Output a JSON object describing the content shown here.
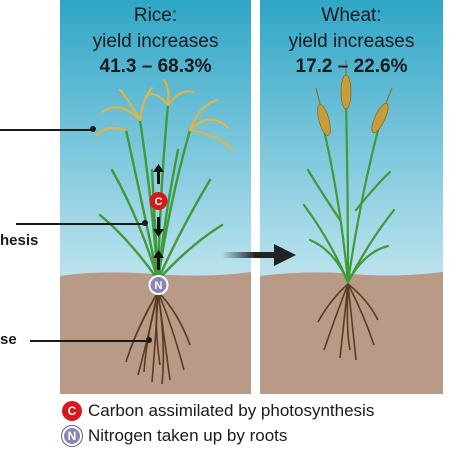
{
  "rice": {
    "title": "Rice:",
    "subtitle": "yield increases",
    "value": "41.3 – 68.3%"
  },
  "wheat": {
    "title": "Wheat:",
    "subtitle": "yield increases",
    "value": "17.2 – 22.6%"
  },
  "callouts": {
    "middle": "hesis",
    "bottom": "se"
  },
  "legend": [
    {
      "symbol": "C",
      "label": "Carbon assimilated by photosynthesis"
    },
    {
      "symbol": "N",
      "label": "Nitrogen taken up by roots"
    }
  ],
  "colors": {
    "sky_top": "#2fa6c6",
    "sky_bottom": "#eaf6fa",
    "soil": "#b89a87",
    "carbon": "#d7191c",
    "nitrogen": "#8a86b8",
    "leaf": "#3f9a3a",
    "grain": "#e8b43c",
    "root": "#5a3b22"
  }
}
